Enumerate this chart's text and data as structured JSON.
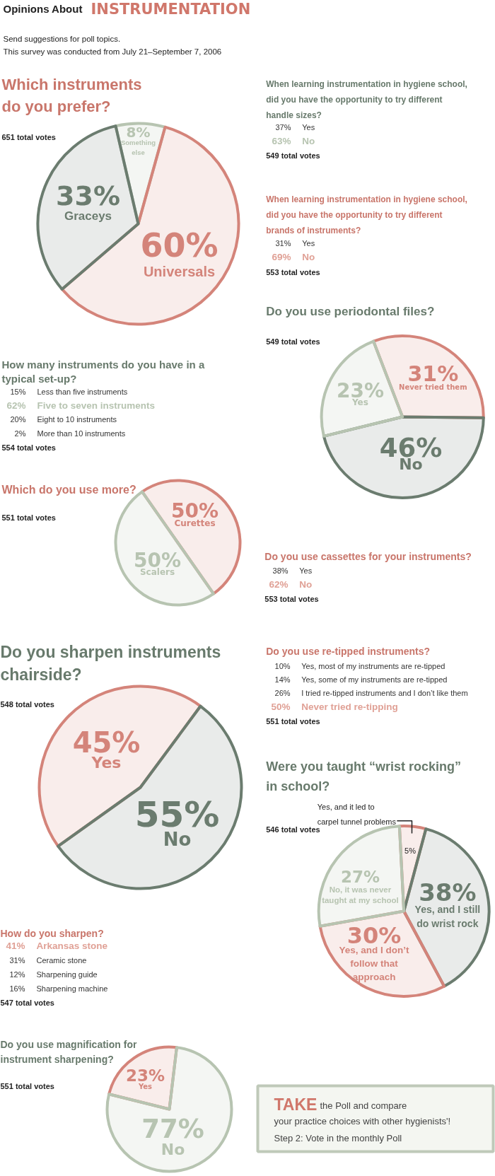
{
  "chart_data": [
    {
      "type": "other",
      "title": "Opinions About INSTRUMENTATION",
      "annotations": [
        "Send suggestions for poll topics.",
        "This survey was conducted from July 21–September 7, 2006"
      ]
    },
    {
      "type": "pie",
      "title": "Which instruments do you prefer?",
      "subtitle": "651 total votes",
      "categories": [
        "Something else",
        "Universals",
        "Graceys"
      ],
      "values": [
        8,
        60,
        33
      ],
      "value_labels": [
        "8%",
        "60%",
        "33%"
      ],
      "colors": [
        "#b7c4b1",
        "#d4847a",
        "#6b7c6f"
      ]
    },
    {
      "type": "other",
      "title": "When learning instrumentation in hygiene school, did you have the opportunity to try different handle sizes?",
      "subtitle": "549 total votes",
      "categories": [
        "Yes",
        "No"
      ],
      "values": [
        37,
        63
      ],
      "value_labels": [
        "37%",
        "63%"
      ]
    },
    {
      "type": "other",
      "title": "When learning instrumentation in hygiene school, did you have the opportunity to try different brands of instruments?",
      "subtitle": "553 total votes",
      "categories": [
        "Yes",
        "No"
      ],
      "values": [
        31,
        69
      ],
      "value_labels": [
        "31%",
        "69%"
      ]
    },
    {
      "type": "pie",
      "title": "Do you use periodontal files?",
      "subtitle": "549 total votes",
      "categories": [
        "Never tried them",
        "No",
        "Yes"
      ],
      "values": [
        31,
        46,
        23
      ],
      "value_labels": [
        "31%",
        "46%",
        "23%"
      ],
      "colors": [
        "#d4847a",
        "#6b7c6f",
        "#b7c4b1"
      ]
    },
    {
      "type": "other",
      "title": "How many instruments do you have in a typical set-up?",
      "subtitle": "554 total votes",
      "categories": [
        "Less than five instruments",
        "Five to seven instruments",
        "Eight to 10 instruments",
        "More than 10 instruments"
      ],
      "values": [
        15,
        62,
        20,
        2
      ],
      "value_labels": [
        "15%",
        "62%",
        "20%",
        "2%"
      ]
    },
    {
      "type": "pie",
      "title": "Which do you use more?",
      "subtitle": "551 total votes",
      "categories": [
        "Curettes",
        "Scalers"
      ],
      "values": [
        50,
        50
      ],
      "value_labels": [
        "50%",
        "50%"
      ],
      "colors": [
        "#d4847a",
        "#b7c4b1"
      ]
    },
    {
      "type": "other",
      "title": "Do you use cassettes for your instruments?",
      "subtitle": "553 total votes",
      "categories": [
        "Yes",
        "No"
      ],
      "values": [
        38,
        62
      ],
      "value_labels": [
        "38%",
        "62%"
      ]
    },
    {
      "type": "pie",
      "title": "Do you sharpen instruments chairside?",
      "subtitle": "548 total votes",
      "categories": [
        "Yes",
        "No"
      ],
      "values": [
        45,
        55
      ],
      "value_labels": [
        "45%",
        "55%"
      ],
      "colors": [
        "#d4847a",
        "#6b7c6f"
      ]
    },
    {
      "type": "other",
      "title": "Do you use re-tipped instruments?",
      "subtitle": "551 total votes",
      "categories": [
        "Yes, most of my instruments are re-tipped",
        "Yes, some of my instruments are re-tipped",
        "I tried re-tipped instruments and I don’t like them",
        "Never tried re-tipping"
      ],
      "values": [
        10,
        14,
        26,
        50
      ],
      "value_labels": [
        "10%",
        "14%",
        "26%",
        "50%"
      ]
    },
    {
      "type": "pie",
      "title": "Were you taught “wrist rocking” in school?",
      "subtitle": "546 total votes",
      "categories": [
        "Yes, and it led to carpel tunnel problems",
        "Yes, and I still do wrist rock",
        "Yes, and I don’t follow that approach",
        "No, it was never taught at my school"
      ],
      "values": [
        5,
        38,
        30,
        27
      ],
      "value_labels": [
        "5%",
        "38%",
        "30%",
        "27%"
      ],
      "colors": [
        "#d4847a",
        "#6b7c6f",
        "#d4847a",
        "#b7c4b1"
      ]
    },
    {
      "type": "other",
      "title": "How do you sharpen?",
      "subtitle": "547 total votes",
      "categories": [
        "Arkansas stone",
        "Ceramic stone",
        "Sharpening guide",
        "Sharpening machine"
      ],
      "values": [
        41,
        31,
        12,
        16
      ],
      "value_labels": [
        "41%",
        "31%",
        "12%",
        "16%"
      ]
    },
    {
      "type": "pie",
      "title": "Do you use magnification for instrument sharpening?",
      "subtitle": "551 total votes",
      "categories": [
        "Yes",
        "No"
      ],
      "values": [
        23,
        77
      ],
      "value_labels": [
        "23%",
        "77%"
      ],
      "colors": [
        "#d4847a",
        "#b7c4b1"
      ]
    },
    {
      "type": "other",
      "title": "TAKE",
      "annotations": [
        "the Poll and compare",
        "your practice choices with other hygienists'!",
        "Step 2: Vote in the monthly Poll"
      ]
    }
  ]
}
